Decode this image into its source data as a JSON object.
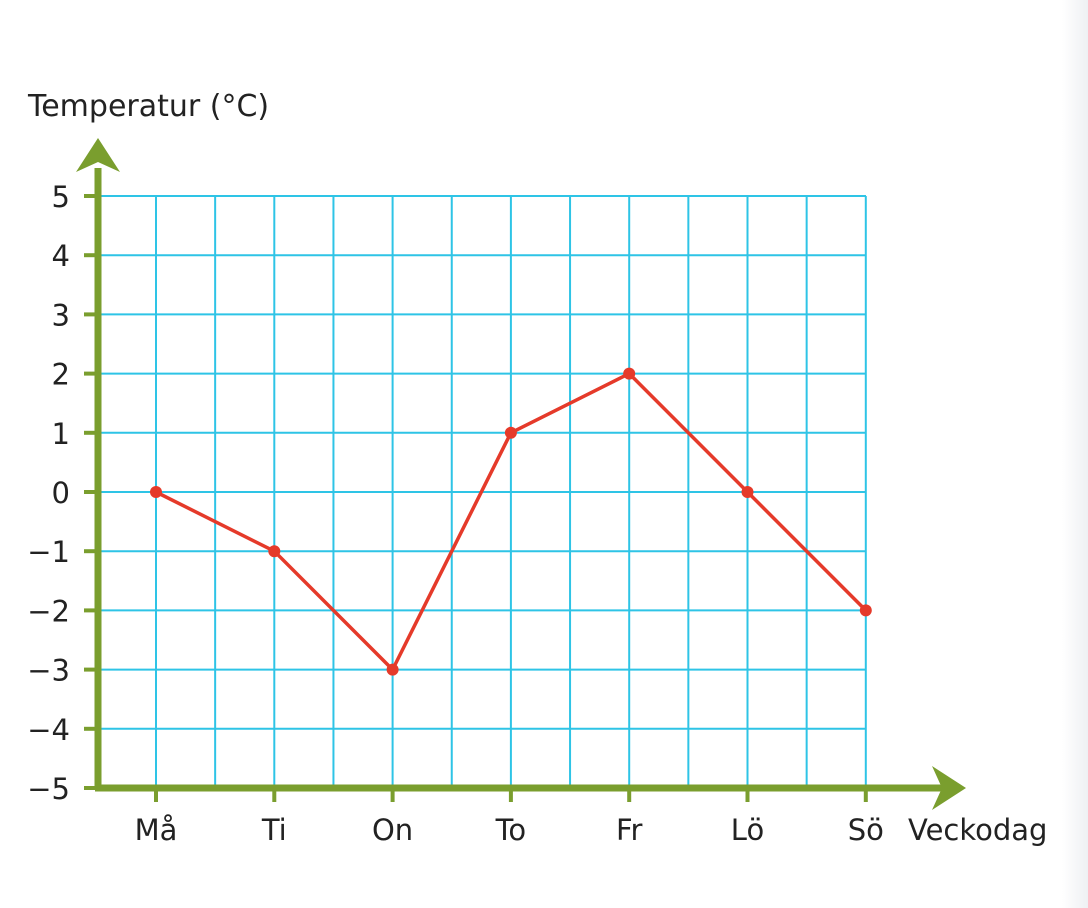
{
  "chart_data": {
    "type": "line",
    "ylabel": "Temperatur (°C)",
    "xlabel": "Veckodag",
    "categories": [
      "Må",
      "Ti",
      "On",
      "To",
      "Fr",
      "Lö",
      "Sö"
    ],
    "y_ticks": [
      "5",
      "4",
      "3",
      "2",
      "1",
      "0",
      "−1",
      "−2",
      "−3",
      "−4",
      "−5"
    ],
    "ylim": [
      -5,
      5
    ],
    "grid": true,
    "series": [
      {
        "values": [
          0,
          -1,
          -3,
          1,
          2,
          0,
          -2
        ]
      }
    ],
    "colors": {
      "grid": "#2ec4e6",
      "axis": "#7a9e2e",
      "line": "#e53a2a",
      "point": "#e53a2a"
    }
  }
}
